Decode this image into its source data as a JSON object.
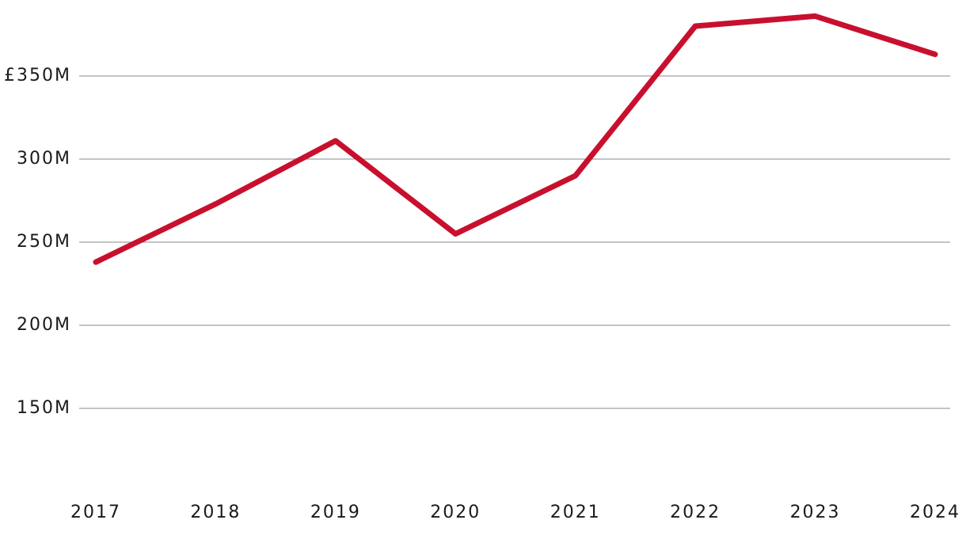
{
  "chart_data": {
    "type": "line",
    "x": [
      "2017",
      "2018",
      "2019",
      "2020",
      "2021",
      "2022",
      "2023",
      "2024"
    ],
    "series": [
      {
        "color": "#c8102e",
        "values": [
          238,
          273,
          311,
          255,
          290,
          380,
          386,
          363
        ]
      }
    ],
    "ylim": [
      100,
      390
    ],
    "yticks": [
      {
        "value": 150,
        "label": "150M"
      },
      {
        "value": 200,
        "label": "200M"
      },
      {
        "value": 250,
        "label": "250M"
      },
      {
        "value": 300,
        "label": "300M"
      },
      {
        "value": 350,
        "label": "£350M"
      }
    ],
    "grid": true
  }
}
